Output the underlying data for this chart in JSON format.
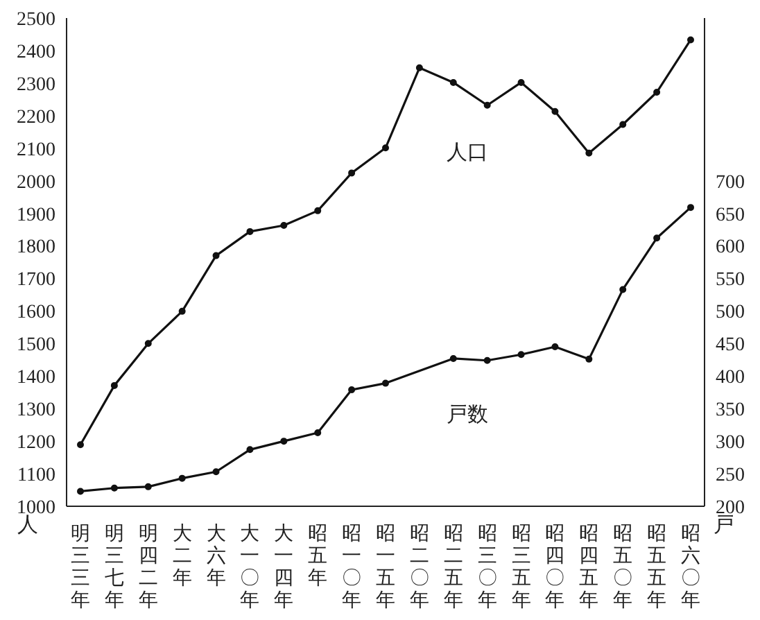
{
  "chart_data": {
    "type": "line",
    "categories": [
      "明三三年",
      "明三七年",
      "明四二年",
      "大二年",
      "大六年",
      "大一〇年",
      "大一四年",
      "昭五年",
      "昭一〇年",
      "昭一五年",
      "昭二〇年",
      "昭二五年",
      "昭三〇年",
      "昭三五年",
      "昭四〇年",
      "昭四五年",
      "昭五〇年",
      "昭五五年",
      "昭六〇年"
    ],
    "series": [
      {
        "name": "人口",
        "color": "#111111",
        "values": [
          1189,
          1371,
          1500,
          1599,
          1770,
          1844,
          1863,
          1908,
          2024,
          2101,
          2347,
          2302,
          2232,
          2302,
          2213,
          2085,
          2173,
          2272,
          2433
        ]
      },
      {
        "name": "戸数",
        "color": "#111111",
        "axis": "y2",
        "values": [
          223,
          228,
          230,
          243,
          253,
          287,
          300,
          313,
          379,
          389,
          null,
          427,
          424,
          433,
          445,
          426,
          533,
          612,
          659
        ]
      }
    ],
    "ylabel": "人",
    "y2label": "戸",
    "ylim": [
      1000,
      2500
    ],
    "yticks": [
      1000,
      1100,
      1200,
      1300,
      1400,
      1500,
      1600,
      1700,
      1800,
      1900,
      2000,
      2100,
      2200,
      2300,
      2400,
      2500
    ],
    "y2lim": [
      200,
      950
    ],
    "y2ticks": [
      200,
      250,
      300,
      350,
      400,
      450,
      500,
      550,
      600,
      650,
      700
    ],
    "grid": false,
    "legend": false,
    "marker": "circle",
    "line_style": "solid"
  }
}
